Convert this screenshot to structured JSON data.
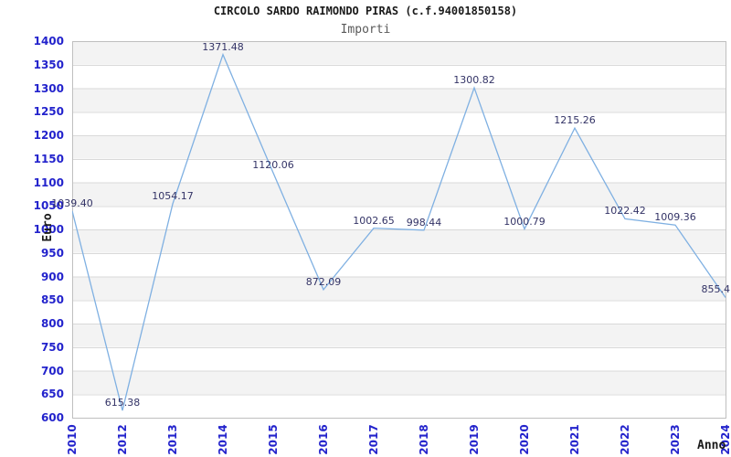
{
  "header": {
    "title": "CIRCOLO SARDO RAIMONDO PIRAS (c.f.94001850158)",
    "subtitle": "Importi"
  },
  "chart_data": {
    "type": "line",
    "title": "CIRCOLO SARDO RAIMONDO PIRAS (c.f.94001850158)",
    "subtitle": "Importi",
    "xlabel": "Anno",
    "ylabel": "Euro",
    "categories": [
      "2010",
      "2012",
      "2013",
      "2014",
      "2015",
      "2016",
      "2017",
      "2018",
      "2019",
      "2020",
      "2021",
      "2022",
      "2023",
      "2024"
    ],
    "series": [
      {
        "name": "Importi",
        "values": [
          1039.4,
          615.38,
          1054.17,
          1371.48,
          1120.06,
          872.09,
          1002.65,
          998.44,
          1300.82,
          1000.79,
          1215.26,
          1022.42,
          1009.36,
          855.4
        ]
      }
    ],
    "point_labels": [
      "1039.40",
      "615.38",
      "1054.17",
      "1371.48",
      "1120.06",
      "872.09",
      "1002.65",
      "998.44",
      "1300.82",
      "1000.79",
      "1215.26",
      "1022.42",
      "1009.36",
      "855.4"
    ],
    "ylim": [
      600,
      1400
    ],
    "ytick_step": 50,
    "yticks": [
      "1400",
      "1350",
      "1300",
      "1250",
      "1200",
      "1150",
      "1100",
      "1050",
      "1000",
      "950",
      "900",
      "850",
      "800",
      "750",
      "700",
      "650",
      "600"
    ],
    "grid": "horizontal gridlines with alternating 50-unit shaded bands, gray band at top",
    "legend": "none",
    "colors": {
      "line": "#7fb0e2",
      "tick_label": "#2323cc",
      "point_label": "#333366",
      "band_gray": "#f3f3f3",
      "band_white": "#ffffff",
      "gridline": "#d9d9d9",
      "plot_border": "#bfbfbf",
      "title": "#1a1a1a",
      "subtitle": "#5a5a5a"
    }
  }
}
